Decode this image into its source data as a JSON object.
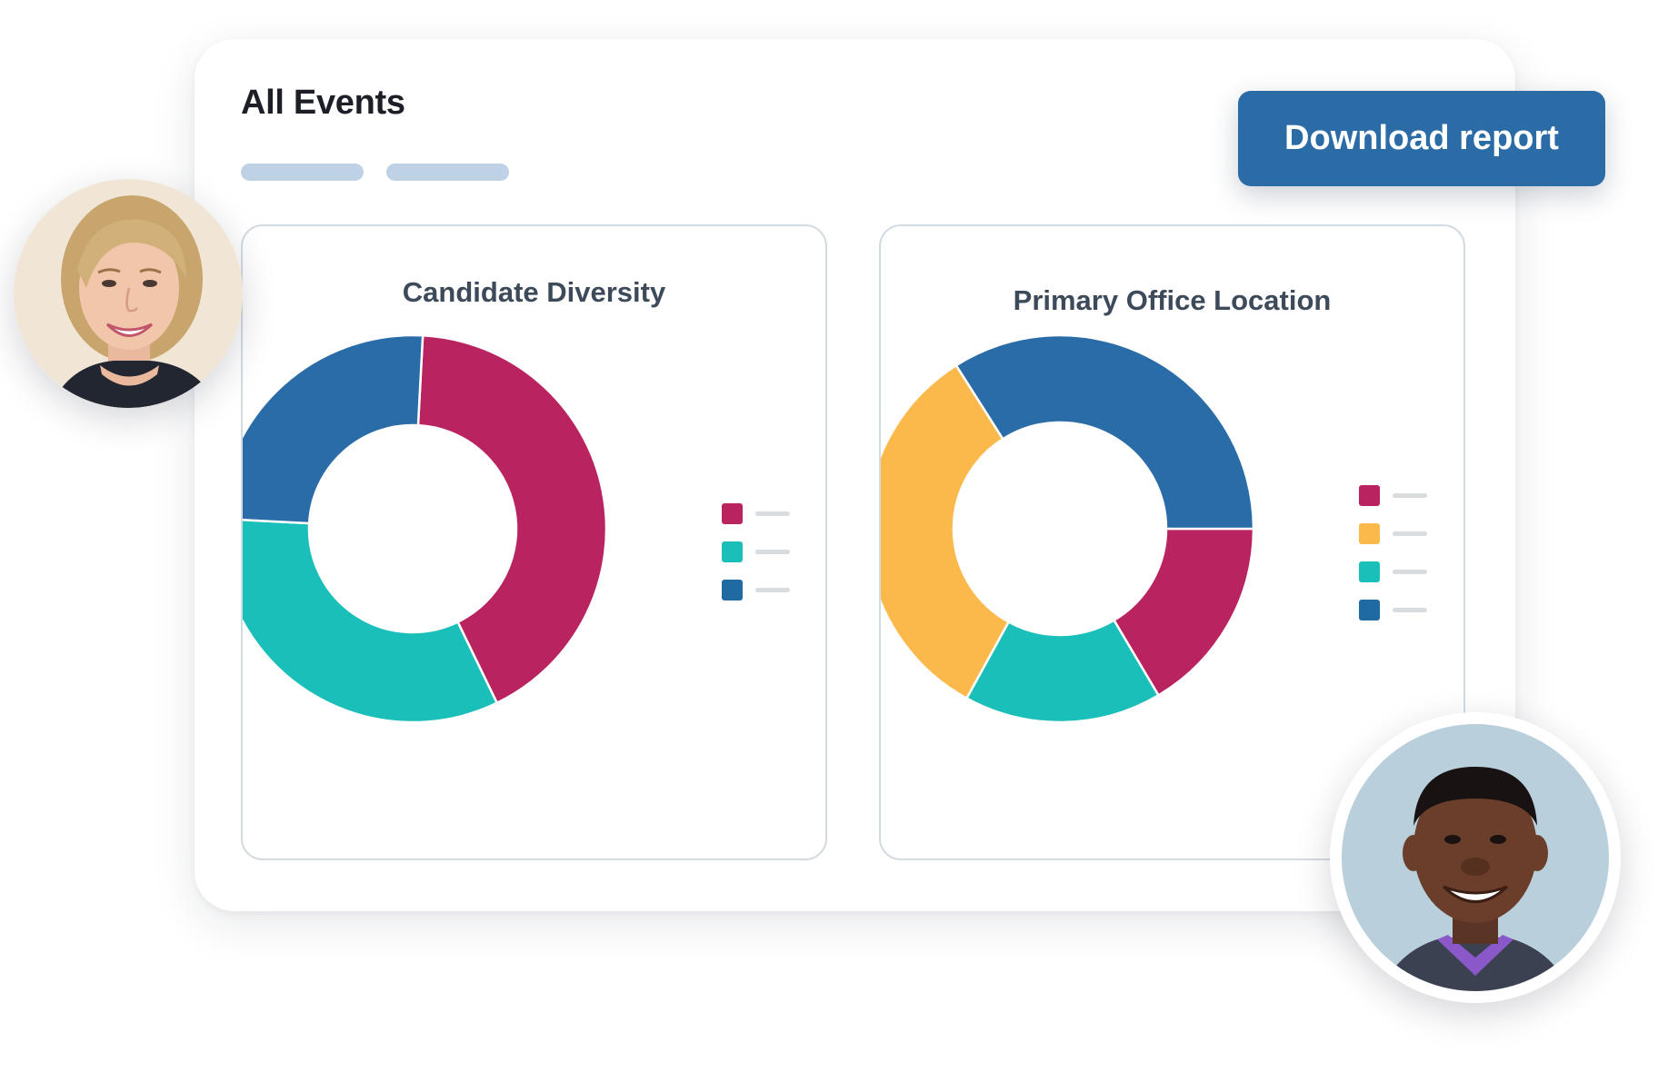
{
  "header": {
    "title": "All Events",
    "download_label": "Download report"
  },
  "colors": {
    "magenta": "#b9235f",
    "teal": "#1bbfb9",
    "blue": "#2a6ca8",
    "yellow": "#fbb94c",
    "legend_blue": "#1f6aa1",
    "pill": "#bfd2e5"
  },
  "chart_data": [
    {
      "type": "pie",
      "title": "Candidate Diversity",
      "style": "donut",
      "series": [
        {
          "name": "",
          "value": 42,
          "color": "#b9235f"
        },
        {
          "name": "",
          "value": 33,
          "color": "#1bbfb9"
        },
        {
          "name": "",
          "value": 25,
          "color": "#2a6ca8"
        }
      ],
      "legend": [
        {
          "color": "#b9235f"
        },
        {
          "color": "#1bbfb9"
        },
        {
          "color": "#1f6aa1"
        }
      ]
    },
    {
      "type": "pie",
      "title": "Primary Office Location",
      "style": "donut",
      "series": [
        {
          "name": "",
          "value": 16.5,
          "color": "#b9235f"
        },
        {
          "name": "",
          "value": 16.5,
          "color": "#1bbfb9"
        },
        {
          "name": "",
          "value": 33,
          "color": "#fbb94c"
        },
        {
          "name": "",
          "value": 34,
          "color": "#2a6ca8"
        }
      ],
      "legend": [
        {
          "color": "#b9235f"
        },
        {
          "color": "#fbb94c"
        },
        {
          "color": "#1bbfb9"
        },
        {
          "color": "#1f6aa1"
        }
      ]
    }
  ],
  "avatars": [
    {
      "name": "avatar-woman"
    },
    {
      "name": "avatar-man"
    }
  ]
}
